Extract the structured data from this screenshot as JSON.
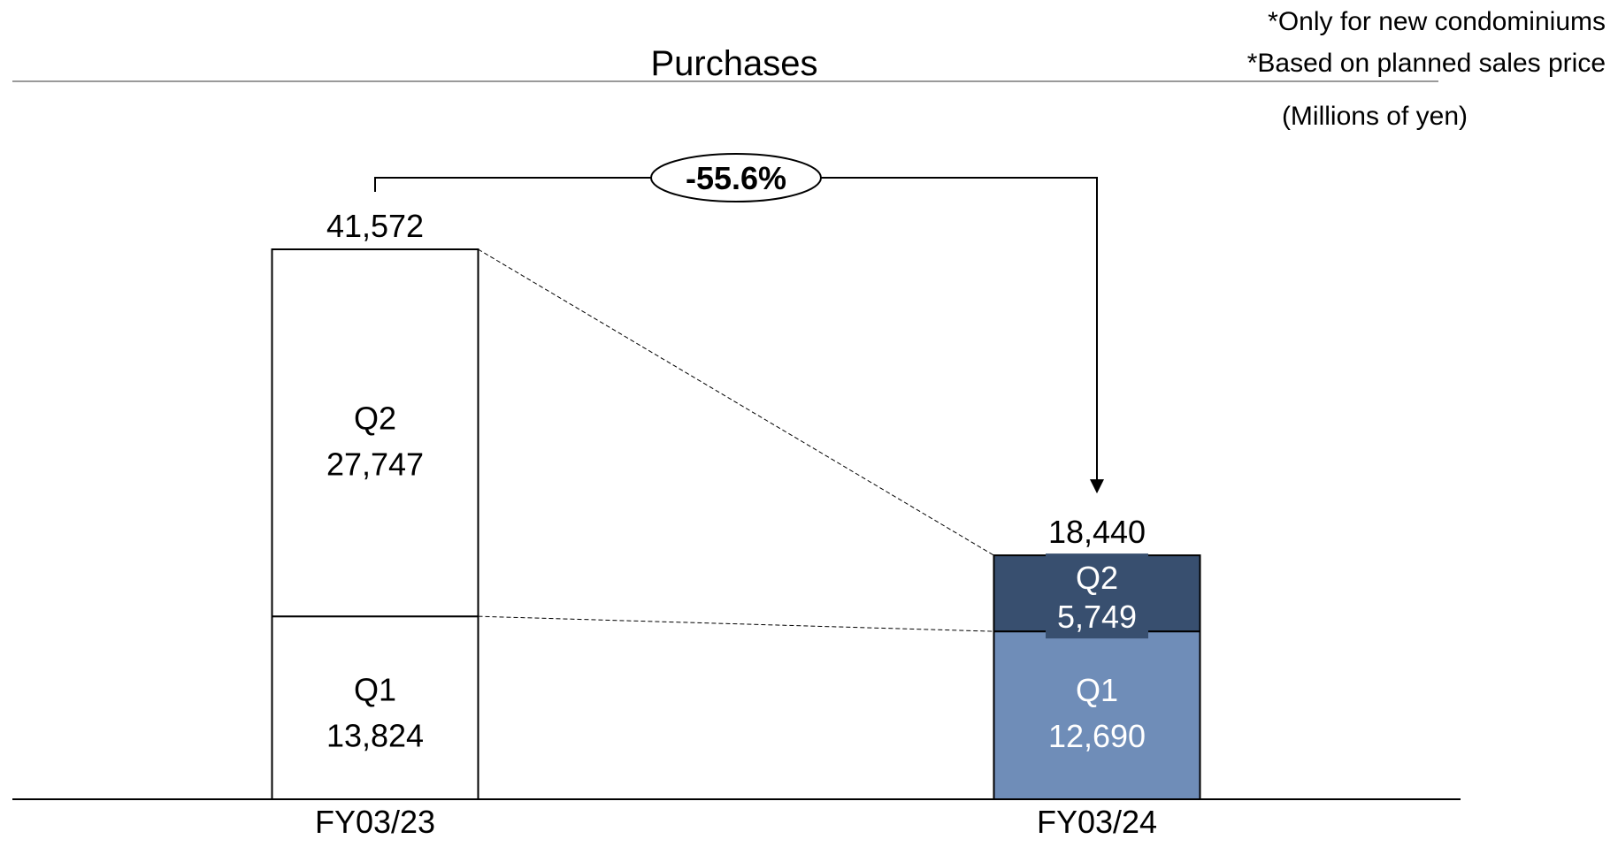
{
  "chart_data": {
    "type": "bar",
    "stacked": true,
    "title": "Purchases",
    "notes": [
      "*Only for new condominiums",
      "*Based on planned sales price"
    ],
    "unit_label": "(Millions of yen)",
    "categories": [
      "FY03/23",
      "FY03/24"
    ],
    "series": [
      {
        "name": "Q1",
        "values": [
          13824,
          12690
        ]
      },
      {
        "name": "Q2",
        "values": [
          27747,
          5749
        ]
      }
    ],
    "totals": [
      "41,572",
      "18,440"
    ],
    "segment_labels": [
      {
        "q1": "13,824",
        "q2": "27,747"
      },
      {
        "q1": "12,690",
        "q2": "5,749"
      }
    ],
    "change_label": "-55.6%",
    "ylim": [
      0,
      48000
    ],
    "grid": false,
    "legend": "none",
    "colors": {
      "fy23_q1": "#ffffff",
      "fy23_q2": "#ffffff",
      "fy24_q1": "#6f8db8",
      "fy24_q2": "#384f6f",
      "outline": "#000000"
    }
  }
}
